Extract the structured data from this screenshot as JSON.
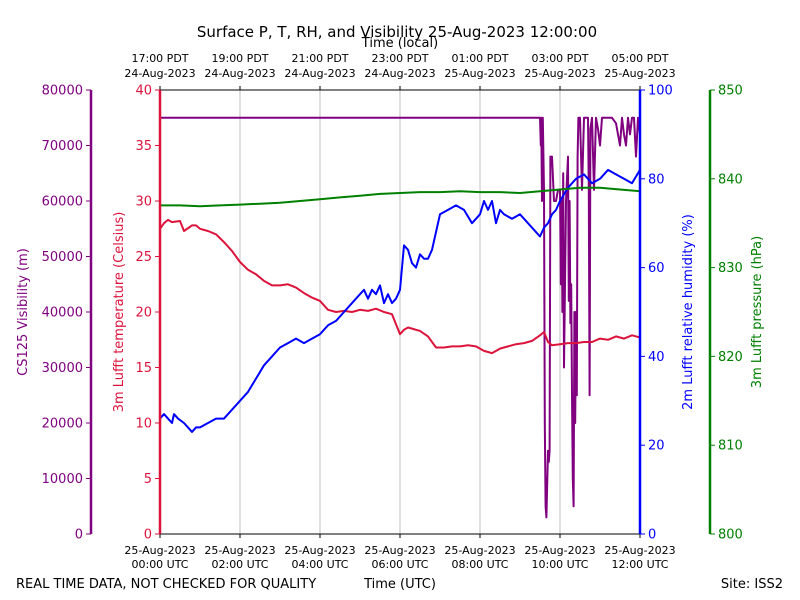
{
  "chart_data": {
    "type": "line",
    "title": "Surface P, T, RH, and Visibility 25-Aug-2023 12:00:00",
    "top_axis_label": "Time (local)",
    "xlabel": "Time (UTC)",
    "footer_left": "REAL TIME DATA, NOT CHECKED FOR QUALITY",
    "footer_right": "Site: ISS2",
    "x_range_hours_utc": [
      0,
      12
    ],
    "x_bottom_ticks": [
      {
        "h": 0,
        "line1": "25-Aug-2023",
        "line2": "00:00 UTC"
      },
      {
        "h": 2,
        "line1": "25-Aug-2023",
        "line2": "02:00 UTC"
      },
      {
        "h": 4,
        "line1": "25-Aug-2023",
        "line2": "04:00 UTC"
      },
      {
        "h": 6,
        "line1": "25-Aug-2023",
        "line2": "06:00 UTC"
      },
      {
        "h": 8,
        "line1": "25-Aug-2023",
        "line2": "08:00 UTC"
      },
      {
        "h": 10,
        "line1": "25-Aug-2023",
        "line2": "10:00 UTC"
      },
      {
        "h": 12,
        "line1": "25-Aug-2023",
        "line2": "12:00 UTC"
      }
    ],
    "x_top_ticks": [
      {
        "h": 0,
        "line1": "17:00 PDT",
        "line2": "24-Aug-2023"
      },
      {
        "h": 2,
        "line1": "19:00 PDT",
        "line2": "24-Aug-2023"
      },
      {
        "h": 4,
        "line1": "21:00 PDT",
        "line2": "24-Aug-2023"
      },
      {
        "h": 6,
        "line1": "23:00 PDT",
        "line2": "24-Aug-2023"
      },
      {
        "h": 8,
        "line1": "01:00 PDT",
        "line2": "25-Aug-2023"
      },
      {
        "h": 10,
        "line1": "03:00 PDT",
        "line2": "25-Aug-2023"
      },
      {
        "h": 12,
        "line1": "05:00 PDT",
        "line2": "25-Aug-2023"
      }
    ],
    "axes": {
      "visibility": {
        "label": "CS125 Visibility (m)",
        "color": "#800080",
        "ylim": [
          0,
          80000
        ],
        "ticks": [
          "0",
          "10000",
          "20000",
          "30000",
          "40000",
          "50000",
          "60000",
          "70000",
          "80000"
        ]
      },
      "temperature": {
        "label": "3m Lufft temperature (Celsius)",
        "color": "#dc143c",
        "ylim": [
          0,
          40
        ],
        "ticks": [
          "0",
          "5",
          "10",
          "15",
          "20",
          "25",
          "30",
          "35",
          "40"
        ]
      },
      "humidity": {
        "label": "2m Lufft relative humidity (%)",
        "color": "#0000ff",
        "ylim": [
          0,
          100
        ],
        "ticks": [
          "0",
          "20",
          "40",
          "60",
          "80",
          "100"
        ]
      },
      "pressure": {
        "label": "3m Lufft pressure (hPa)",
        "color": "#008000",
        "ylim": [
          800,
          850
        ],
        "ticks": [
          "800",
          "810",
          "820",
          "830",
          "840",
          "850"
        ]
      }
    },
    "series": [
      {
        "name": "CS125 Visibility (m)",
        "axis": "visibility",
        "x": [
          0,
          9.5,
          9.52,
          9.53,
          9.55,
          9.57,
          9.6,
          9.62,
          9.64,
          9.66,
          9.7,
          9.72,
          9.74,
          9.76,
          9.8,
          9.85,
          9.9,
          9.95,
          10,
          10.02,
          10.04,
          10.06,
          10.08,
          10.1,
          10.15,
          10.2,
          10.22,
          10.24,
          10.26,
          10.28,
          10.3,
          10.32,
          10.34,
          10.36,
          10.38,
          10.4,
          10.42,
          10.44,
          10.46,
          10.5,
          10.55,
          10.6,
          10.65,
          10.7,
          10.72,
          10.74,
          10.76,
          10.8,
          10.85,
          10.9,
          10.95,
          11,
          11.05,
          11.1,
          11.2,
          11.3,
          11.4,
          11.5,
          11.55,
          11.6,
          11.65,
          11.7,
          11.75,
          11.8,
          11.85,
          11.9,
          11.95,
          12
        ],
        "y": [
          75000,
          75000,
          70000,
          75000,
          60000,
          75000,
          62000,
          20000,
          5000,
          3000,
          15000,
          13000,
          15000,
          68000,
          68000,
          60000,
          60000,
          62000,
          62000,
          45000,
          60000,
          40000,
          65000,
          30000,
          60000,
          68000,
          42000,
          60000,
          38000,
          45000,
          25000,
          10000,
          5000,
          40000,
          20000,
          40000,
          25000,
          68000,
          75000,
          75000,
          62000,
          75000,
          75000,
          75000,
          62000,
          25000,
          73000,
          75000,
          62000,
          75000,
          73000,
          70000,
          75000,
          75000,
          75000,
          75000,
          74000,
          70000,
          75000,
          72000,
          70000,
          75000,
          72000,
          75000,
          75000,
          68000,
          75000,
          72000
        ]
      },
      {
        "name": "3m Lufft temperature (Celsius)",
        "axis": "temperature",
        "x": [
          0,
          0.1,
          0.2,
          0.3,
          0.5,
          0.6,
          0.8,
          0.9,
          1.0,
          1.2,
          1.4,
          1.6,
          1.8,
          2.0,
          2.2,
          2.4,
          2.6,
          2.8,
          3.0,
          3.2,
          3.4,
          3.6,
          3.8,
          4.0,
          4.2,
          4.4,
          4.6,
          4.8,
          5.0,
          5.2,
          5.4,
          5.6,
          5.8,
          6.0,
          6.1,
          6.2,
          6.3,
          6.5,
          6.7,
          6.9,
          7.1,
          7.3,
          7.5,
          7.7,
          7.9,
          8.1,
          8.3,
          8.5,
          8.7,
          8.9,
          9.1,
          9.3,
          9.5,
          9.6,
          9.7,
          9.8,
          10.0,
          10.2,
          10.4,
          10.6,
          10.8,
          11.0,
          11.2,
          11.4,
          11.6,
          11.8,
          12.0
        ],
        "y": [
          27.5,
          28.0,
          28.3,
          28.1,
          28.2,
          27.3,
          27.8,
          27.8,
          27.5,
          27.3,
          27.0,
          26.3,
          25.5,
          24.5,
          23.8,
          23.4,
          22.8,
          22.4,
          22.4,
          22.5,
          22.2,
          21.7,
          21.3,
          21.0,
          20.2,
          20.0,
          20.1,
          20.0,
          20.2,
          20.1,
          20.3,
          20.0,
          19.8,
          18.0,
          18.4,
          18.6,
          18.5,
          18.3,
          17.8,
          16.8,
          16.8,
          16.9,
          16.9,
          17.0,
          16.9,
          16.5,
          16.3,
          16.7,
          16.9,
          17.1,
          17.2,
          17.4,
          17.9,
          18.2,
          17.3,
          17.0,
          17.1,
          17.2,
          17.2,
          17.3,
          17.3,
          17.6,
          17.5,
          17.8,
          17.6,
          17.9,
          17.7
        ]
      },
      {
        "name": "2m Lufft relative humidity (%)",
        "axis": "humidity",
        "x": [
          0,
          0.1,
          0.2,
          0.3,
          0.35,
          0.45,
          0.6,
          0.7,
          0.8,
          0.9,
          1.0,
          1.2,
          1.4,
          1.6,
          1.8,
          2.0,
          2.2,
          2.4,
          2.6,
          2.8,
          3.0,
          3.2,
          3.4,
          3.6,
          3.8,
          4.0,
          4.2,
          4.4,
          4.6,
          4.8,
          5.0,
          5.1,
          5.2,
          5.3,
          5.4,
          5.5,
          5.6,
          5.7,
          5.8,
          5.9,
          6.0,
          6.1,
          6.2,
          6.3,
          6.4,
          6.5,
          6.6,
          6.7,
          6.8,
          6.9,
          7.0,
          7.2,
          7.4,
          7.6,
          7.8,
          8.0,
          8.1,
          8.2,
          8.3,
          8.4,
          8.5,
          8.6,
          8.8,
          9.0,
          9.2,
          9.4,
          9.5,
          9.6,
          9.7,
          9.8,
          9.9,
          10.0,
          10.2,
          10.4,
          10.6,
          10.8,
          11.0,
          11.2,
          11.4,
          11.6,
          11.8,
          12.0
        ],
        "y": [
          26,
          27,
          26,
          25,
          27,
          26,
          25,
          24,
          23,
          24,
          24,
          25,
          26,
          26,
          28,
          30,
          32,
          35,
          38,
          40,
          42,
          43,
          44,
          43,
          44,
          45,
          47,
          48,
          50,
          52,
          54,
          55,
          53,
          55,
          54,
          56,
          52,
          54,
          52,
          53,
          55,
          65,
          64,
          61,
          60,
          63,
          62,
          62,
          64,
          68,
          72,
          73,
          74,
          73,
          70,
          72,
          75,
          73,
          75,
          70,
          73,
          72,
          71,
          72,
          70,
          68,
          67,
          69,
          70,
          72,
          73,
          75,
          78,
          80,
          81,
          79,
          80,
          82,
          81,
          80,
          79,
          82
        ]
      },
      {
        "name": "3m Lufft pressure (hPa)",
        "axis": "pressure",
        "x": [
          0,
          0.5,
          1,
          1.5,
          2,
          2.5,
          3,
          3.5,
          4,
          4.5,
          5,
          5.5,
          6,
          6.5,
          7,
          7.5,
          8,
          8.5,
          9,
          9.5,
          10,
          10.5,
          11,
          11.5,
          12
        ],
        "y": [
          837.0,
          837.0,
          836.9,
          837.0,
          837.1,
          837.2,
          837.3,
          837.5,
          837.7,
          837.9,
          838.1,
          838.3,
          838.4,
          838.5,
          838.5,
          838.6,
          838.5,
          838.5,
          838.4,
          838.6,
          838.8,
          839.0,
          839.0,
          838.8,
          838.6
        ]
      }
    ]
  }
}
